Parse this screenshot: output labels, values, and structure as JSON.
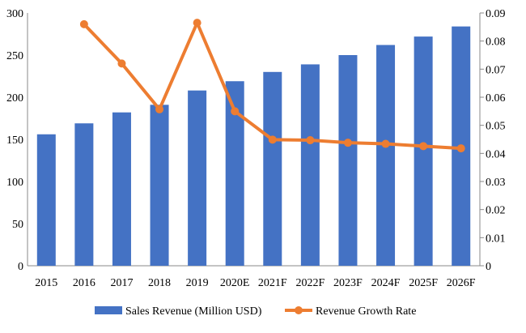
{
  "chart_data": {
    "type": "bar+line",
    "categories": [
      "2015",
      "2016",
      "2017",
      "2018",
      "2019",
      "2020E",
      "2021F",
      "2022F",
      "2023F",
      "2024F",
      "2025F",
      "2026F"
    ],
    "series": [
      {
        "name": "Sales Revenue (Million USD)",
        "type": "bar",
        "axis": "left",
        "color": "#4472C4",
        "values": [
          156,
          169,
          182,
          191,
          208,
          219,
          230,
          239,
          250,
          262,
          272,
          284
        ]
      },
      {
        "name": "Revenue Growth Rate",
        "type": "line",
        "axis": "right",
        "color": "#ED7D31",
        "values": [
          null,
          0.086,
          0.072,
          0.0557,
          0.0865,
          0.055,
          0.0449,
          0.0447,
          0.0438,
          0.0434,
          0.0426,
          0.0418
        ]
      }
    ],
    "ylim_left": [
      0,
      300
    ],
    "yticks_left": [
      "0",
      "50",
      "100",
      "150",
      "200",
      "250",
      "300"
    ],
    "ylim_right": [
      0,
      0.09
    ],
    "yticks_right": [
      "0",
      "0.01",
      "0.02",
      "0.03",
      "0.04",
      "0.05",
      "0.06",
      "0.07",
      "0.08",
      "0.09"
    ],
    "grid": false,
    "legend_position": "bottom"
  }
}
